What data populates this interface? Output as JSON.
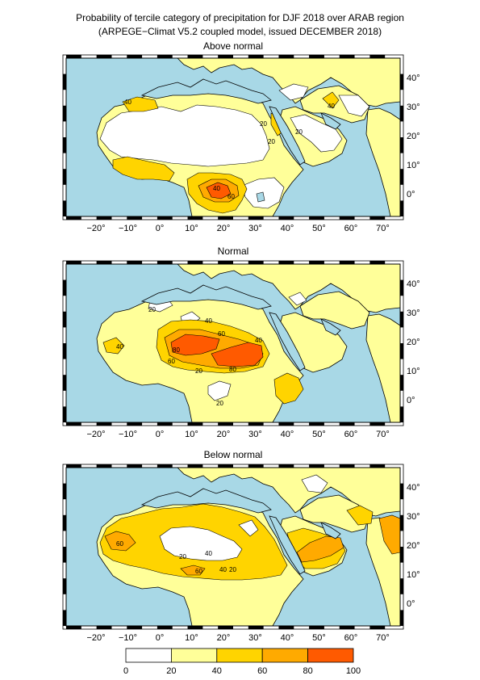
{
  "title": "Probability of tercile category of precipitation for DJF 2018 over ARAB region",
  "subtitle": "(ARPEGE−Climat V5.2 coupled model, issued DECEMBER 2018)",
  "panels": [
    {
      "name": "Above normal",
      "contour_labels": [
        "40",
        "40",
        "20",
        "20",
        "20",
        "40",
        "60"
      ]
    },
    {
      "name": "Normal",
      "contour_labels": [
        "20",
        "40",
        "40",
        "60",
        "80",
        "60",
        "80",
        "20",
        "20",
        "40"
      ]
    },
    {
      "name": "Below normal",
      "contour_labels": [
        "60",
        "20",
        "40",
        "40",
        "20",
        "60"
      ]
    }
  ],
  "longitude_ticks": [
    "−20°",
    "−10°",
    "0°",
    "10°",
    "20°",
    "30°",
    "40°",
    "50°",
    "60°",
    "70°"
  ],
  "latitude_ticks": [
    "40°",
    "30°",
    "20°",
    "10°",
    "0°"
  ],
  "colorbar": {
    "ticks": [
      "0",
      "20",
      "40",
      "60",
      "80",
      "100"
    ],
    "colors": [
      "#ffffff",
      "#ffff99",
      "#ffd400",
      "#ffaa00",
      "#ff5a00"
    ]
  },
  "colors": {
    "ocean": "#a8d8e6",
    "c0_20": "#ffffff",
    "c20_40": "#ffff99",
    "c40_60": "#ffd400",
    "c60_80": "#ffaa00",
    "c80_100": "#ff5a00"
  }
}
